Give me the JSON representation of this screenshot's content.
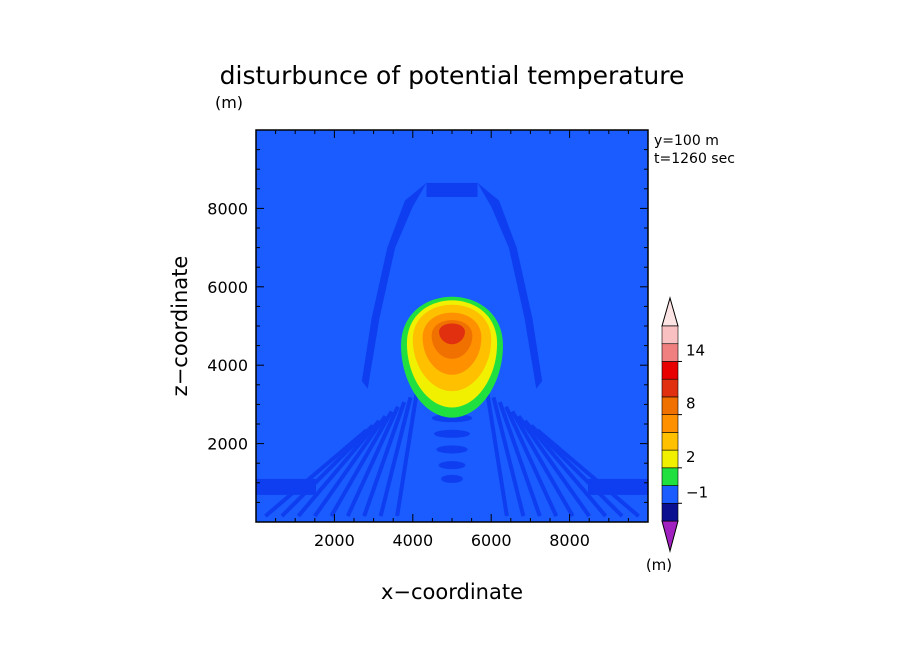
{
  "chart_data": {
    "type": "heatmap",
    "title": "disturbunce of potential temperature",
    "unit_label": "(m)",
    "xlabel": "x−coordinate",
    "ylabel": "z−coordinate",
    "xlim": [
      0,
      10000
    ],
    "ylim": [
      0,
      10000
    ],
    "x_ticks": [
      2000,
      4000,
      6000,
      8000
    ],
    "y_ticks": [
      2000,
      4000,
      6000,
      8000
    ],
    "x_tick_labels": [
      "2000",
      "4000",
      "6000",
      "8000"
    ],
    "y_tick_labels": [
      "2000",
      "4000",
      "6000",
      "8000"
    ],
    "annotations": [
      "y=100 m",
      "t=1260 sec"
    ],
    "background_color": "#1a5cff",
    "levels": [
      -2,
      -1,
      0,
      2,
      4,
      6,
      8,
      10,
      12,
      14,
      16
    ],
    "colorbar": {
      "unit_label": "(m)",
      "colors": [
        "#a020c0",
        "#0a1090",
        "#1a5cff",
        "#20e040",
        "#f0f000",
        "#ffc000",
        "#ff9000",
        "#f07000",
        "#e03010",
        "#e80000",
        "#f08080",
        "#f8c0c0",
        "#fce4e4"
      ],
      "labels": [
        {
          "value": -1,
          "text": "−1"
        },
        {
          "value": 2,
          "text": "2"
        },
        {
          "value": 8,
          "text": "8"
        },
        {
          "value": 14,
          "text": "14"
        }
      ]
    },
    "field": {
      "description": "warm bubble disturbance",
      "center_x": 5000,
      "center_z": 4700,
      "max": 12,
      "background": 0,
      "contours": [
        {
          "level": 0.5,
          "color": "#20e040",
          "rx": 1300,
          "rz": 1750,
          "cz": 4500
        },
        {
          "level": 2,
          "color": "#f0f000",
          "rx": 1150,
          "rz": 1550,
          "cz": 4550
        },
        {
          "level": 4,
          "color": "#ffc000",
          "rx": 1000,
          "rz": 1250,
          "cz": 4650
        },
        {
          "level": 6,
          "color": "#ff9000",
          "rx": 750,
          "rz": 900,
          "cz": 4700
        },
        {
          "level": 8,
          "color": "#f07000",
          "rx": 520,
          "rz": 560,
          "cz": 4750
        },
        {
          "level": 10,
          "color": "#e03010",
          "rx": 330,
          "rz": 300,
          "cz": 4850
        }
      ]
    }
  }
}
